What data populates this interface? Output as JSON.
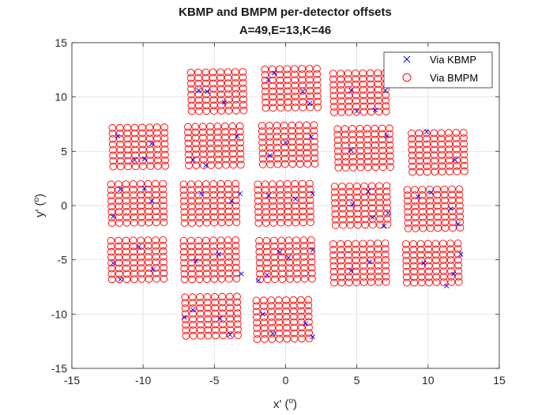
{
  "chart_data": {
    "type": "scatter",
    "title": "KBMP and BMPM per-detector offsets",
    "subtitle": "A=49,E=13,K=46",
    "xlabel_main": "x'",
    "xlabel_unit": "o",
    "ylabel_main": "y'",
    "ylabel_unit": "o",
    "xlim": [
      -15,
      15
    ],
    "ylim": [
      -15,
      15
    ],
    "xticks": [
      "-15",
      "-10",
      "-5",
      "0",
      "5",
      "10",
      "15"
    ],
    "yticks": [
      "-15",
      "-10",
      "-5",
      "0",
      "5",
      "10",
      "15"
    ],
    "grid": true,
    "legend_location": "top-right",
    "series": [
      {
        "name": "Via KBMP",
        "marker": "x",
        "color": "#0000ff"
      },
      {
        "name": "Via BMPM",
        "marker": "o",
        "color": "#ff0000"
      }
    ],
    "tile_grid": {
      "rows": 8,
      "cols": 8,
      "tile_centers": [
        {
          "x": -4.8,
          "y": 10.5,
          "rotation_deg": 1
        },
        {
          "x": 0.4,
          "y": 10.8,
          "rotation_deg": 1
        },
        {
          "x": 5.2,
          "y": 10.4,
          "rotation_deg": 1
        },
        {
          "x": -10.3,
          "y": 5.4,
          "rotation_deg": 1
        },
        {
          "x": -5.0,
          "y": 5.5,
          "rotation_deg": 1
        },
        {
          "x": 0.2,
          "y": 5.6,
          "rotation_deg": 1
        },
        {
          "x": 5.5,
          "y": 5.3,
          "rotation_deg": 1
        },
        {
          "x": 10.7,
          "y": 4.9,
          "rotation_deg": 1
        },
        {
          "x": -10.4,
          "y": 0.2,
          "rotation_deg": 1
        },
        {
          "x": -5.3,
          "y": 0.2,
          "rotation_deg": 1
        },
        {
          "x": -0.1,
          "y": 0.2,
          "rotation_deg": 1
        },
        {
          "x": 5.3,
          "y": 0.0,
          "rotation_deg": 1
        },
        {
          "x": 10.4,
          "y": -0.3,
          "rotation_deg": 1
        },
        {
          "x": -10.4,
          "y": -5.0,
          "rotation_deg": 1
        },
        {
          "x": -5.3,
          "y": -5.0,
          "rotation_deg": 1
        },
        {
          "x": 0.0,
          "y": -5.0,
          "rotation_deg": 1
        },
        {
          "x": 5.2,
          "y": -5.3,
          "rotation_deg": 1
        },
        {
          "x": 10.3,
          "y": -5.3,
          "rotation_deg": 1
        },
        {
          "x": -5.2,
          "y": -10.2,
          "rotation_deg": 1
        },
        {
          "x": -0.2,
          "y": -10.5,
          "rotation_deg": 1
        }
      ]
    },
    "x_marker_points": [
      [
        -6.1,
        10.6
      ],
      [
        -5.5,
        10.5
      ],
      [
        -4.3,
        9.5
      ],
      [
        -1.2,
        11.6
      ],
      [
        -0.8,
        12.2
      ],
      [
        1.2,
        10.5
      ],
      [
        1.7,
        9.4
      ],
      [
        4.6,
        10.6
      ],
      [
        5.0,
        8.7
      ],
      [
        6.3,
        8.8
      ],
      [
        7.0,
        10.6
      ],
      [
        -11.8,
        6.4
      ],
      [
        -10.6,
        4.2
      ],
      [
        -9.9,
        4.3
      ],
      [
        -9.4,
        5.7
      ],
      [
        -6.5,
        4.2
      ],
      [
        -5.6,
        3.7
      ],
      [
        -3.4,
        6.4
      ],
      [
        -1.1,
        4.6
      ],
      [
        0.0,
        5.8
      ],
      [
        1.8,
        6.3
      ],
      [
        4.6,
        5.1
      ],
      [
        7.1,
        6.4
      ],
      [
        9.9,
        6.8
      ],
      [
        11.9,
        4.2
      ],
      [
        -12.1,
        -1.0
      ],
      [
        -11.6,
        1.5
      ],
      [
        -9.9,
        1.6
      ],
      [
        -9.4,
        0.4
      ],
      [
        -5.9,
        1.1
      ],
      [
        -3.8,
        0.4
      ],
      [
        -3.2,
        1.1
      ],
      [
        -1.2,
        0.9
      ],
      [
        0.7,
        0.6
      ],
      [
        1.9,
        1.1
      ],
      [
        4.7,
        0.1
      ],
      [
        5.8,
        1.3
      ],
      [
        6.1,
        -1.1
      ],
      [
        6.9,
        -1.9
      ],
      [
        7.2,
        -0.7
      ],
      [
        9.3,
        0.8
      ],
      [
        10.2,
        1.2
      ],
      [
        11.6,
        -0.3
      ],
      [
        12.1,
        -1.7
      ],
      [
        -12.1,
        -5.3
      ],
      [
        -11.6,
        -6.8
      ],
      [
        -10.3,
        -3.8
      ],
      [
        -9.3,
        -5.9
      ],
      [
        -6.3,
        -5.1
      ],
      [
        -4.7,
        -4.5
      ],
      [
        -3.1,
        -6.3
      ],
      [
        -1.9,
        -6.9
      ],
      [
        -1.3,
        -6.4
      ],
      [
        -0.4,
        -4.3
      ],
      [
        0.2,
        -4.8
      ],
      [
        1.9,
        -4.1
      ],
      [
        4.6,
        -6.0
      ],
      [
        5.9,
        -5.2
      ],
      [
        9.7,
        -5.3
      ],
      [
        11.3,
        -7.4
      ],
      [
        11.8,
        -6.3
      ],
      [
        12.3,
        -4.5
      ],
      [
        -7.1,
        -10.3
      ],
      [
        -6.5,
        -9.6
      ],
      [
        -4.6,
        -10.4
      ],
      [
        -3.9,
        -11.9
      ],
      [
        -1.6,
        -10.0
      ],
      [
        -0.9,
        -11.8
      ],
      [
        1.4,
        -10.9
      ],
      [
        1.9,
        -12.1
      ]
    ]
  }
}
